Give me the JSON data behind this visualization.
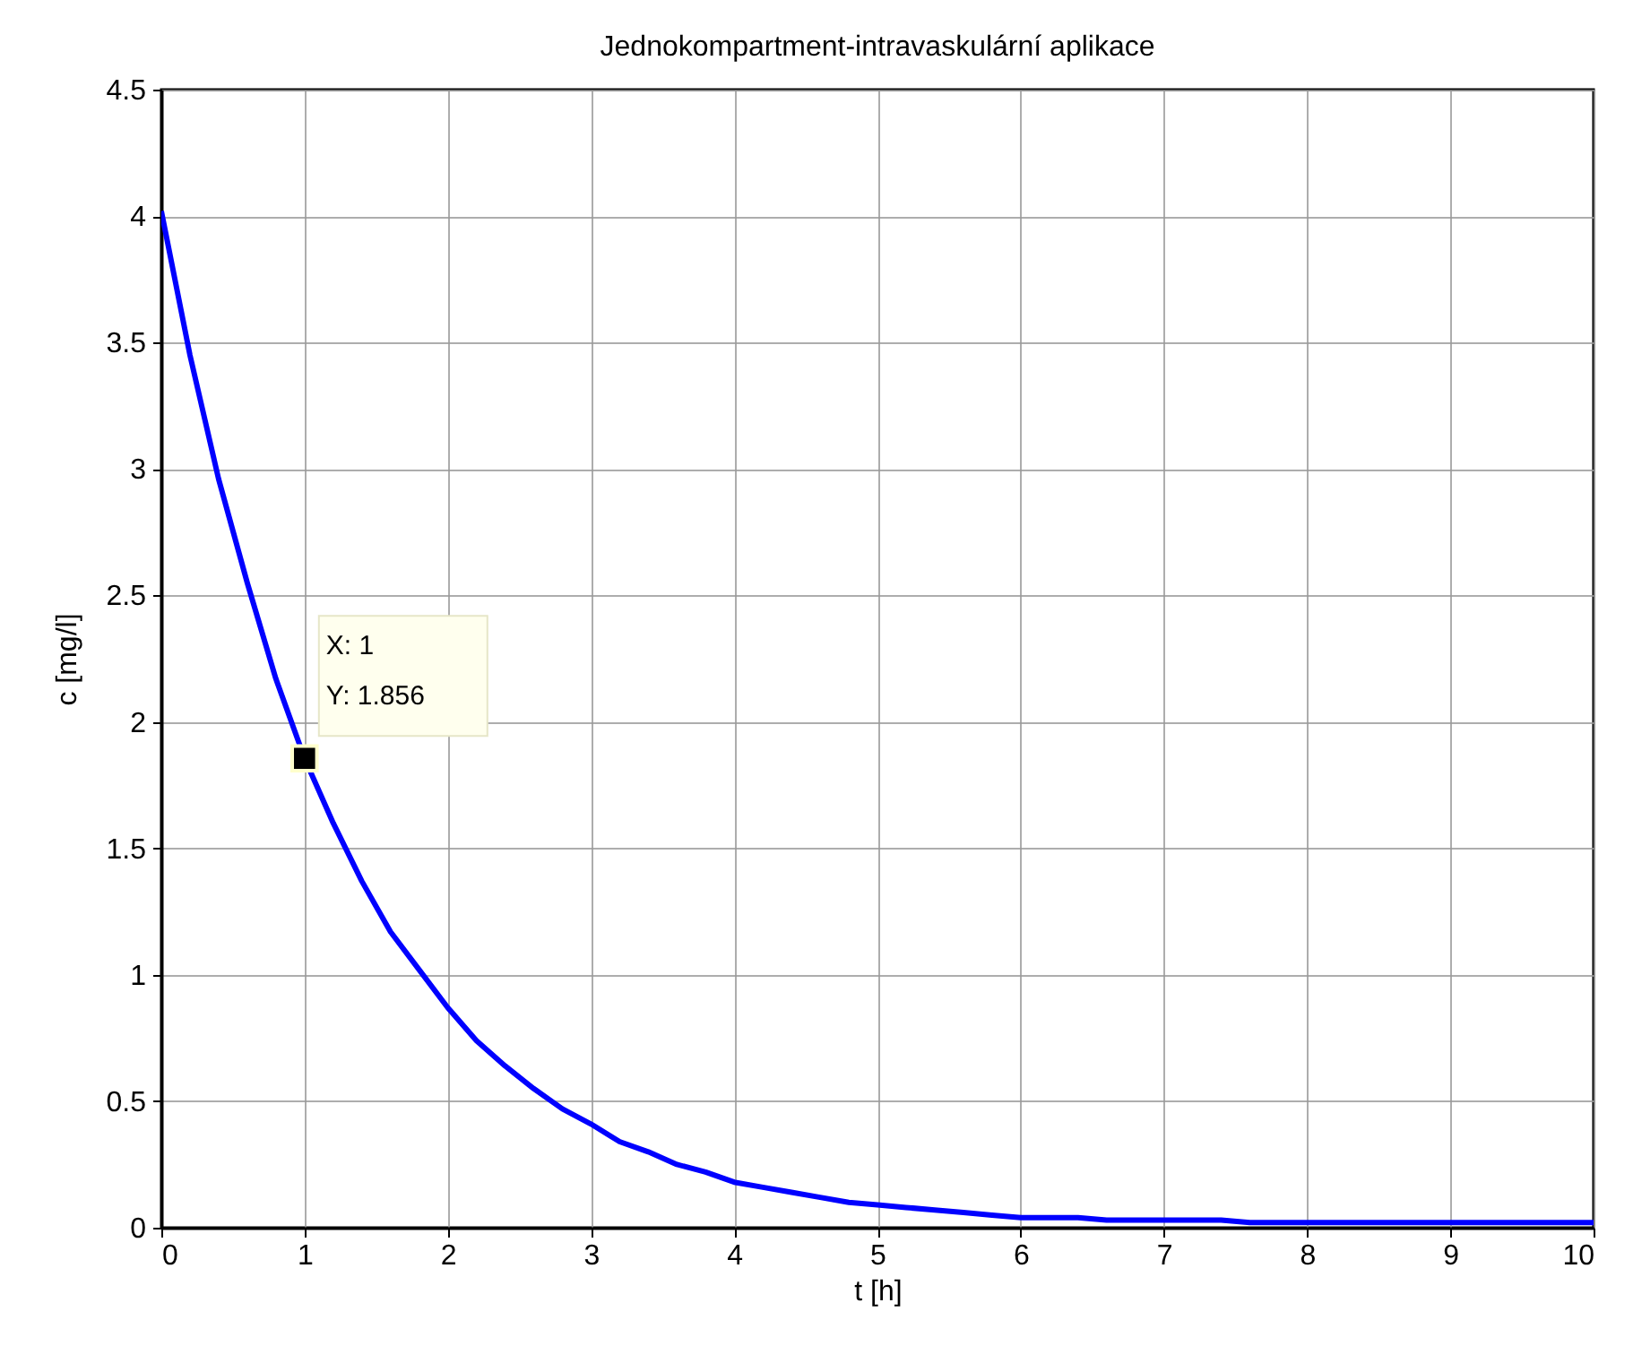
{
  "chart_data": {
    "type": "line",
    "title": "Jednokompartment-intravaskulární aplikace",
    "xlabel": "t [h]",
    "ylabel": "c [mg/l]",
    "x": [
      0,
      0.2,
      0.4,
      0.6,
      0.8,
      1,
      1.2,
      1.4,
      1.6,
      1.8,
      2,
      2.2,
      2.4,
      2.6,
      2.8,
      3,
      3.2,
      3.4,
      3.6,
      3.8,
      4,
      4.2,
      4.4,
      4.6,
      4.8,
      5,
      5.2,
      5.4,
      5.6,
      5.8,
      6,
      6.4,
      6.6,
      7.4,
      7.6,
      10
    ],
    "series": [
      {
        "color": "#0000ff",
        "values": [
          4.02,
          3.45,
          2.96,
          2.55,
          2.17,
          1.856,
          1.6,
          1.37,
          1.17,
          1.02,
          0.87,
          0.74,
          0.64,
          0.55,
          0.47,
          0.41,
          0.34,
          0.3,
          0.25,
          0.22,
          0.18,
          0.16,
          0.14,
          0.12,
          0.1,
          0.09,
          0.08,
          0.07,
          0.06,
          0.05,
          0.04,
          0.04,
          0.03,
          0.03,
          0.02,
          0.02
        ]
      }
    ],
    "xlim": [
      0,
      10
    ],
    "ylim": [
      0,
      4.5
    ],
    "xticks": [
      0,
      1,
      2,
      3,
      4,
      5,
      6,
      7,
      8,
      9,
      10
    ],
    "yticks": [
      0,
      0.5,
      1,
      1.5,
      2,
      2.5,
      3,
      3.5,
      4,
      4.5
    ],
    "grid": true,
    "annotations": [
      {
        "text": "X: 1\nY: 1.856",
        "x": 1,
        "y": 1.856
      }
    ]
  }
}
